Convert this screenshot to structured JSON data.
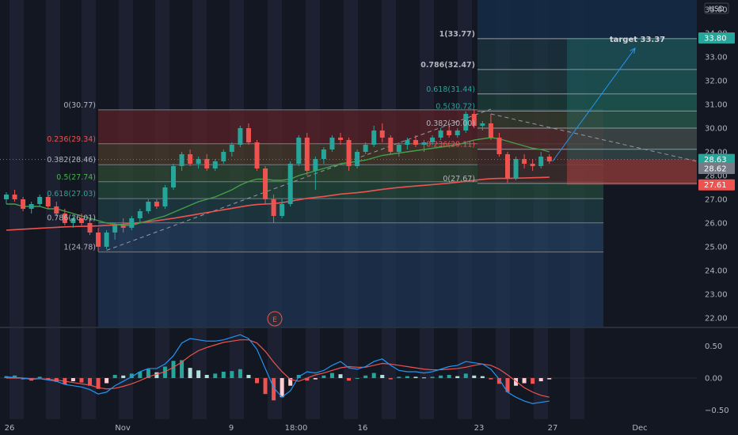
{
  "chart_data": {
    "type": "candlestick",
    "currency": "USD",
    "price_axis": {
      "ticks": [
        "35.00",
        "34.00",
        "33.00",
        "32.00",
        "31.00",
        "30.00",
        "29.00",
        "28.00",
        "27.00",
        "26.00",
        "25.00",
        "24.00",
        "23.00",
        "22.00"
      ],
      "range": [
        21.6,
        35.4
      ],
      "badges": [
        {
          "value": "33.80",
          "price": 33.8,
          "color": "#26a69a"
        },
        {
          "value": "28.63",
          "price": 28.68,
          "color": "#26a69a"
        },
        {
          "value": "28.62",
          "price": 28.3,
          "color": "#787b86"
        },
        {
          "value": "27.61",
          "price": 27.61,
          "color": "#ef5350"
        }
      ]
    },
    "time_axis": [
      "26",
      "Nov",
      "9",
      "18:00",
      "16",
      "23",
      "27",
      "Dec"
    ],
    "fib_retracement_1": {
      "levels": [
        {
          "label": "0(30.77)",
          "price": 30.77,
          "label_color": "#b2b5be"
        },
        {
          "label": "0.236(29.34)",
          "price": 29.34,
          "label_color": "#ef5350"
        },
        {
          "label": "0.382(28.46)",
          "price": 28.46,
          "label_color": "#b2b5be"
        },
        {
          "label": "0.5(27.74)",
          "price": 27.74,
          "label_color": "#4caf50"
        },
        {
          "label": "0.618(27.03)",
          "price": 27.03,
          "label_color": "#26a69a"
        },
        {
          "label": "0.786(26.01)",
          "price": 26.01,
          "label_color": "#b2b5be"
        },
        {
          "label": "1(24.78)",
          "price": 24.78,
          "label_color": "#b2b5be"
        }
      ]
    },
    "fib_retracement_2": {
      "levels": [
        {
          "label": "1(33.77)",
          "price": 33.77,
          "label_color": "#b2b5be"
        },
        {
          "label": "0.786(32.47)",
          "price": 32.47,
          "label_color": "#b2b5be"
        },
        {
          "label": "0.618(31.44)",
          "price": 31.44,
          "label_color": "#26a69a"
        },
        {
          "label": "0.5(30.72)",
          "price": 30.72,
          "label_color": "#26a69a"
        },
        {
          "label": "0.382(30.00)",
          "price": 30.0,
          "label_color": "#b2b5be"
        },
        {
          "label": "0.236(29.11)",
          "price": 29.11,
          "label_color": "#ef5350"
        },
        {
          "label": "0(27.67)",
          "price": 27.67,
          "label_color": "#b2b5be"
        }
      ]
    },
    "annotation": {
      "text": "target 33.37",
      "price": 33.37
    },
    "earnings_marker": "E",
    "oscillator": {
      "ticks": [
        "0.50",
        "0.00",
        "−0.50"
      ],
      "range": [
        -0.62,
        0.72
      ]
    },
    "candles": [
      {
        "o": 27.0,
        "h": 27.3,
        "l": 26.8,
        "c": 27.2
      },
      {
        "o": 27.2,
        "h": 27.4,
        "l": 26.9,
        "c": 27.0
      },
      {
        "o": 27.0,
        "h": 27.1,
        "l": 26.5,
        "c": 26.6
      },
      {
        "o": 26.6,
        "h": 26.9,
        "l": 26.4,
        "c": 26.8
      },
      {
        "o": 26.8,
        "h": 27.2,
        "l": 26.7,
        "c": 27.1
      },
      {
        "o": 27.1,
        "h": 27.2,
        "l": 26.6,
        "c": 26.7
      },
      {
        "o": 26.7,
        "h": 26.9,
        "l": 26.3,
        "c": 26.4
      },
      {
        "o": 26.4,
        "h": 26.6,
        "l": 25.9,
        "c": 26.0
      },
      {
        "o": 26.0,
        "h": 26.3,
        "l": 25.8,
        "c": 26.2
      },
      {
        "o": 26.2,
        "h": 26.4,
        "l": 25.9,
        "c": 26.0
      },
      {
        "o": 26.0,
        "h": 26.2,
        "l": 25.5,
        "c": 25.6
      },
      {
        "o": 25.6,
        "h": 25.8,
        "l": 24.8,
        "c": 25.0
      },
      {
        "o": 25.0,
        "h": 25.7,
        "l": 24.9,
        "c": 25.6
      },
      {
        "o": 25.6,
        "h": 26.0,
        "l": 25.3,
        "c": 25.9
      },
      {
        "o": 25.9,
        "h": 26.2,
        "l": 25.6,
        "c": 25.8
      },
      {
        "o": 25.8,
        "h": 26.3,
        "l": 25.7,
        "c": 26.2
      },
      {
        "o": 26.2,
        "h": 26.6,
        "l": 26.0,
        "c": 26.5
      },
      {
        "o": 26.5,
        "h": 27.0,
        "l": 26.4,
        "c": 26.9
      },
      {
        "o": 26.9,
        "h": 27.0,
        "l": 26.6,
        "c": 26.7
      },
      {
        "o": 26.7,
        "h": 27.6,
        "l": 26.6,
        "c": 27.5
      },
      {
        "o": 27.5,
        "h": 28.5,
        "l": 27.4,
        "c": 28.4
      },
      {
        "o": 28.4,
        "h": 29.0,
        "l": 28.2,
        "c": 28.9
      },
      {
        "o": 28.9,
        "h": 29.1,
        "l": 28.4,
        "c": 28.5
      },
      {
        "o": 28.5,
        "h": 28.8,
        "l": 28.3,
        "c": 28.7
      },
      {
        "o": 28.7,
        "h": 28.9,
        "l": 28.2,
        "c": 28.3
      },
      {
        "o": 28.3,
        "h": 28.7,
        "l": 28.2,
        "c": 28.6
      },
      {
        "o": 28.6,
        "h": 29.1,
        "l": 28.5,
        "c": 29.0
      },
      {
        "o": 29.0,
        "h": 29.4,
        "l": 28.8,
        "c": 29.3
      },
      {
        "o": 29.3,
        "h": 30.1,
        "l": 29.2,
        "c": 30.0
      },
      {
        "o": 30.0,
        "h": 30.2,
        "l": 29.3,
        "c": 29.4
      },
      {
        "o": 29.4,
        "h": 29.5,
        "l": 28.2,
        "c": 28.3
      },
      {
        "o": 28.3,
        "h": 28.4,
        "l": 26.8,
        "c": 27.0
      },
      {
        "o": 27.0,
        "h": 27.2,
        "l": 26.0,
        "c": 26.3
      },
      {
        "o": 26.3,
        "h": 27.0,
        "l": 26.2,
        "c": 26.8
      },
      {
        "o": 26.8,
        "h": 28.6,
        "l": 26.7,
        "c": 28.5
      },
      {
        "o": 28.5,
        "h": 29.7,
        "l": 28.4,
        "c": 29.6
      },
      {
        "o": 29.6,
        "h": 29.8,
        "l": 28.0,
        "c": 28.2
      },
      {
        "o": 28.2,
        "h": 28.8,
        "l": 27.4,
        "c": 28.7
      },
      {
        "o": 28.7,
        "h": 29.2,
        "l": 28.5,
        "c": 29.1
      },
      {
        "o": 29.1,
        "h": 29.7,
        "l": 29.0,
        "c": 29.6
      },
      {
        "o": 29.6,
        "h": 29.8,
        "l": 29.3,
        "c": 29.5
      },
      {
        "o": 29.5,
        "h": 29.6,
        "l": 28.2,
        "c": 28.4
      },
      {
        "o": 28.4,
        "h": 29.1,
        "l": 28.3,
        "c": 29.0
      },
      {
        "o": 29.0,
        "h": 29.4,
        "l": 28.9,
        "c": 29.3
      },
      {
        "o": 29.3,
        "h": 30.1,
        "l": 29.2,
        "c": 29.9
      },
      {
        "o": 29.9,
        "h": 30.2,
        "l": 29.4,
        "c": 29.6
      },
      {
        "o": 29.6,
        "h": 29.7,
        "l": 28.9,
        "c": 29.0
      },
      {
        "o": 29.0,
        "h": 29.4,
        "l": 28.8,
        "c": 29.3
      },
      {
        "o": 29.3,
        "h": 29.6,
        "l": 29.1,
        "c": 29.5
      },
      {
        "o": 29.5,
        "h": 29.7,
        "l": 29.2,
        "c": 29.3
      },
      {
        "o": 29.3,
        "h": 29.5,
        "l": 29.0,
        "c": 29.4
      },
      {
        "o": 29.4,
        "h": 29.7,
        "l": 29.3,
        "c": 29.6
      },
      {
        "o": 29.6,
        "h": 30.0,
        "l": 29.5,
        "c": 29.9
      },
      {
        "o": 29.9,
        "h": 30.1,
        "l": 29.6,
        "c": 29.7
      },
      {
        "o": 29.7,
        "h": 30.0,
        "l": 29.6,
        "c": 29.9
      },
      {
        "o": 29.9,
        "h": 30.7,
        "l": 29.8,
        "c": 30.6
      },
      {
        "o": 30.6,
        "h": 30.8,
        "l": 30.0,
        "c": 30.1
      },
      {
        "o": 30.1,
        "h": 30.3,
        "l": 29.9,
        "c": 30.2
      },
      {
        "o": 30.2,
        "h": 30.6,
        "l": 29.5,
        "c": 29.6
      },
      {
        "o": 29.6,
        "h": 29.8,
        "l": 28.8,
        "c": 28.9
      },
      {
        "o": 28.9,
        "h": 29.0,
        "l": 27.7,
        "c": 27.9
      },
      {
        "o": 27.9,
        "h": 28.8,
        "l": 27.8,
        "c": 28.7
      },
      {
        "o": 28.7,
        "h": 28.9,
        "l": 28.3,
        "c": 28.5
      },
      {
        "o": 28.5,
        "h": 28.7,
        "l": 28.2,
        "c": 28.4
      },
      {
        "o": 28.4,
        "h": 29.0,
        "l": 28.3,
        "c": 28.8
      },
      {
        "o": 28.8,
        "h": 28.9,
        "l": 28.5,
        "c": 28.6
      }
    ],
    "ma_green": [
      26.8,
      26.8,
      26.7,
      26.7,
      26.7,
      26.6,
      26.6,
      26.5,
      26.4,
      26.3,
      26.2,
      26.1,
      26.0,
      25.95,
      25.9,
      25.9,
      26.0,
      26.1,
      26.2,
      26.3,
      26.45,
      26.6,
      26.75,
      26.9,
      27.0,
      27.1,
      27.25,
      27.4,
      27.6,
      27.75,
      27.85,
      27.85,
      27.8,
      27.8,
      27.85,
      28.0,
      28.1,
      28.2,
      28.3,
      28.4,
      28.5,
      28.55,
      28.6,
      28.65,
      28.75,
      28.85,
      28.9,
      28.95,
      29.0,
      29.05,
      29.1,
      29.15,
      29.2,
      29.25,
      29.3,
      29.4,
      29.5,
      29.55,
      29.6,
      29.55,
      29.45,
      29.35,
      29.25,
      29.15,
      29.1,
      29.0
    ],
    "ma_red": [
      25.7,
      25.72,
      25.74,
      25.76,
      25.78,
      25.8,
      25.82,
      25.84,
      25.85,
      25.86,
      25.87,
      25.88,
      25.9,
      25.92,
      25.95,
      25.98,
      26.02,
      26.06,
      26.1,
      26.15,
      26.2,
      26.26,
      26.32,
      26.38,
      26.44,
      26.5,
      26.56,
      26.62,
      26.68,
      26.74,
      26.78,
      26.8,
      26.82,
      26.86,
      26.92,
      26.98,
      27.04,
      27.08,
      27.12,
      27.17,
      27.22,
      27.25,
      27.28,
      27.32,
      27.37,
      27.42,
      27.46,
      27.5,
      27.53,
      27.56,
      27.59,
      27.62,
      27.65,
      27.68,
      27.72,
      27.76,
      27.8,
      27.84,
      27.87,
      27.88,
      27.88,
      27.89,
      27.9,
      27.91,
      27.92,
      27.93
    ],
    "macd_hist": [
      0.03,
      0.04,
      -0.02,
      -0.04,
      0.02,
      -0.03,
      -0.06,
      -0.1,
      -0.05,
      -0.07,
      -0.12,
      -0.17,
      -0.08,
      0.05,
      0.04,
      0.07,
      0.1,
      0.14,
      0.09,
      0.18,
      0.27,
      0.28,
      0.16,
      0.12,
      0.05,
      0.07,
      0.1,
      0.11,
      0.14,
      0.05,
      -0.08,
      -0.25,
      -0.35,
      -0.3,
      -0.12,
      0.05,
      -0.04,
      -0.02,
      0.04,
      0.08,
      0.06,
      -0.04,
      0.0,
      0.04,
      0.08,
      0.05,
      -0.02,
      0.02,
      0.03,
      0.02,
      0.01,
      0.02,
      0.04,
      0.05,
      0.03,
      0.07,
      0.04,
      0.03,
      -0.02,
      -0.09,
      -0.22,
      -0.12,
      -0.08,
      -0.09,
      -0.05,
      -0.02
    ],
    "macd_line": [
      0.02,
      0.01,
      0.0,
      -0.02,
      -0.01,
      -0.03,
      -0.05,
      -0.1,
      -0.12,
      -0.14,
      -0.18,
      -0.25,
      -0.22,
      -0.12,
      -0.05,
      0.02,
      0.1,
      0.15,
      0.15,
      0.22,
      0.35,
      0.55,
      0.62,
      0.6,
      0.58,
      0.58,
      0.6,
      0.64,
      0.68,
      0.62,
      0.45,
      0.15,
      -0.15,
      -0.3,
      -0.2,
      0.02,
      0.1,
      0.08,
      0.12,
      0.2,
      0.26,
      0.16,
      0.14,
      0.18,
      0.26,
      0.3,
      0.2,
      0.12,
      0.1,
      0.1,
      0.08,
      0.1,
      0.14,
      0.18,
      0.2,
      0.26,
      0.24,
      0.22,
      0.14,
      -0.02,
      -0.22,
      -0.3,
      -0.36,
      -0.4,
      -0.38,
      -0.36
    ],
    "signal_line": [
      0.0,
      0.0,
      0.0,
      -0.01,
      -0.01,
      -0.02,
      -0.03,
      -0.05,
      -0.07,
      -0.09,
      -0.11,
      -0.15,
      -0.17,
      -0.16,
      -0.13,
      -0.09,
      -0.04,
      0.02,
      0.06,
      0.1,
      0.17,
      0.25,
      0.35,
      0.43,
      0.48,
      0.52,
      0.56,
      0.58,
      0.6,
      0.6,
      0.55,
      0.42,
      0.25,
      0.1,
      -0.02,
      -0.05,
      0.0,
      0.05,
      0.08,
      0.12,
      0.16,
      0.18,
      0.17,
      0.17,
      0.2,
      0.23,
      0.22,
      0.2,
      0.18,
      0.16,
      0.14,
      0.13,
      0.13,
      0.14,
      0.15,
      0.17,
      0.2,
      0.22,
      0.2,
      0.14,
      0.05,
      -0.05,
      -0.15,
      -0.22,
      -0.27,
      -0.3
    ]
  }
}
